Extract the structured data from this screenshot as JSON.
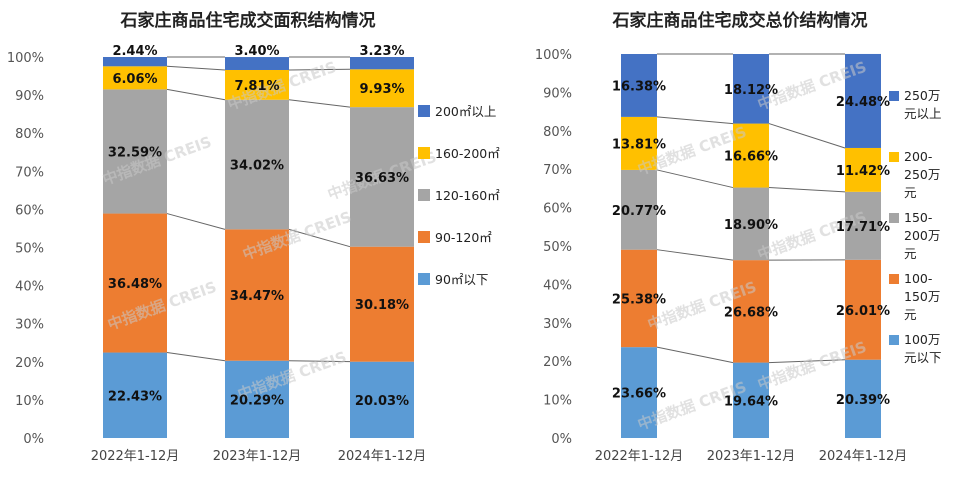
{
  "chart_data": [
    {
      "type": "bar",
      "stacked": true,
      "title": "石家庄商品住宅成交面积结构情况",
      "categories": [
        "2022年1-12月",
        "2023年1-12月",
        "2024年1-12月"
      ],
      "yticks": [
        "0%",
        "10%",
        "20%",
        "30%",
        "40%",
        "50%",
        "60%",
        "70%",
        "80%",
        "90%",
        "100%"
      ],
      "ylim": [
        0,
        100
      ],
      "series": [
        {
          "name": "90㎡以下",
          "color": "#5b9bd5",
          "values": [
            22.43,
            20.29,
            20.03
          ],
          "labels": [
            "22.43%",
            "20.29%",
            "20.03%"
          ]
        },
        {
          "name": "90-120㎡",
          "color": "#ed7d31",
          "values": [
            36.48,
            34.47,
            30.18
          ],
          "labels": [
            "36.48%",
            "34.47%",
            "30.18%"
          ]
        },
        {
          "name": "120-160㎡",
          "color": "#a5a5a5",
          "values": [
            32.59,
            34.02,
            36.63
          ],
          "labels": [
            "32.59%",
            "34.02%",
            "36.63%"
          ]
        },
        {
          "name": "160-200㎡",
          "color": "#ffc000",
          "values": [
            6.06,
            7.81,
            9.93
          ],
          "labels": [
            "6.06%",
            "7.81%",
            "9.93%"
          ]
        },
        {
          "name": "200㎡以上",
          "color": "#4472c4",
          "values": [
            2.44,
            3.4,
            3.23
          ],
          "labels": [
            "2.44%",
            "3.40%",
            "3.23%"
          ]
        }
      ],
      "legend_position": "right"
    },
    {
      "type": "bar",
      "stacked": true,
      "title": "石家庄商品住宅成交总价结构情况",
      "categories": [
        "2022年1-12月",
        "2023年1-12月",
        "2024年1-12月"
      ],
      "yticks": [
        "0%",
        "10%",
        "20%",
        "30%",
        "40%",
        "50%",
        "60%",
        "70%",
        "80%",
        "90%",
        "100%"
      ],
      "ylim": [
        0,
        100
      ],
      "series": [
        {
          "name": "100万元以下",
          "legend_lines": [
            "100万",
            "元以下"
          ],
          "color": "#5b9bd5",
          "values": [
            23.66,
            19.64,
            20.39
          ],
          "labels": [
            "23.66%",
            "19.64%",
            "20.39%"
          ]
        },
        {
          "name": "100-150万元",
          "legend_lines": [
            "100-",
            "150万",
            "元"
          ],
          "color": "#ed7d31",
          "values": [
            25.38,
            26.68,
            26.01
          ],
          "labels": [
            "25.38%",
            "26.68%",
            "26.01%"
          ]
        },
        {
          "name": "150-200万元",
          "legend_lines": [
            "150-",
            "200万",
            "元"
          ],
          "color": "#a5a5a5",
          "values": [
            20.77,
            18.9,
            17.71
          ],
          "labels": [
            "20.77%",
            "18.90%",
            "17.71%"
          ]
        },
        {
          "name": "200-250万元",
          "legend_lines": [
            "200-",
            "250万",
            "元"
          ],
          "color": "#ffc000",
          "values": [
            13.81,
            16.66,
            11.42
          ],
          "labels": [
            "13.81%",
            "16.66%",
            "11.42%"
          ]
        },
        {
          "name": "250万元以上",
          "legend_lines": [
            "250万",
            "元以上"
          ],
          "color": "#4472c4",
          "values": [
            16.38,
            18.12,
            24.48
          ],
          "labels": [
            "16.38%",
            "18.12%",
            "24.48%"
          ]
        }
      ],
      "legend_position": "right"
    }
  ],
  "watermark": {
    "text_cn": "中指数据",
    "text_en": "CREIS"
  }
}
